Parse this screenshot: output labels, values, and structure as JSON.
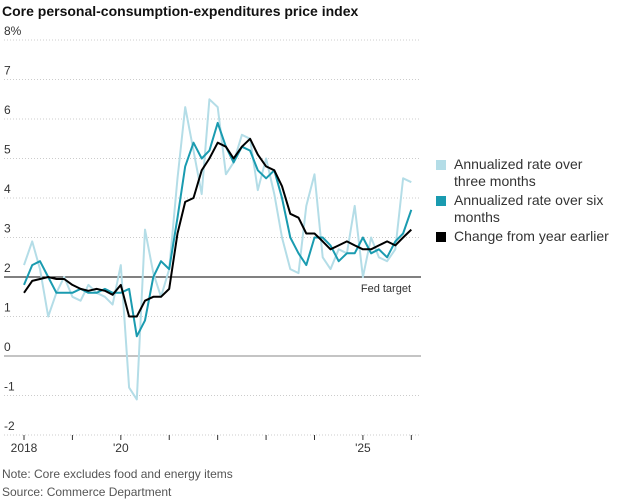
{
  "chart_data": {
    "type": "line",
    "title": "Core personal-consumption-expenditures price index",
    "x": [
      2018.0,
      2018.17,
      2018.33,
      2018.5,
      2018.67,
      2018.83,
      2019.0,
      2019.17,
      2019.33,
      2019.5,
      2019.67,
      2019.83,
      2020.0,
      2020.17,
      2020.33,
      2020.5,
      2020.67,
      2020.83,
      2021.0,
      2021.17,
      2021.33,
      2021.5,
      2021.67,
      2021.83,
      2022.0,
      2022.17,
      2022.33,
      2022.5,
      2022.67,
      2022.83,
      2023.0,
      2023.17,
      2023.33,
      2023.5,
      2023.67,
      2023.83,
      2024.0,
      2024.17,
      2024.33,
      2024.5,
      2024.67,
      2024.83,
      2025.0,
      2025.17,
      2025.33,
      2025.5,
      2025.67,
      2025.83,
      2026.0
    ],
    "series": [
      {
        "name": "Annualized rate over three months",
        "color": "#b4dde7",
        "values": [
          2.3,
          2.9,
          2.2,
          1.0,
          1.6,
          2.0,
          1.5,
          1.4,
          1.8,
          1.6,
          1.5,
          1.3,
          2.3,
          -0.8,
          -1.1,
          3.2,
          2.1,
          1.5,
          2.2,
          4.5,
          6.3,
          5.2,
          4.1,
          6.5,
          6.3,
          4.6,
          4.9,
          5.6,
          5.5,
          4.2,
          5.0,
          4.1,
          3.0,
          2.2,
          2.1,
          3.8,
          4.6,
          2.5,
          2.2,
          2.7,
          2.6,
          3.8,
          2.0,
          3.0,
          2.5,
          2.4,
          2.7,
          4.5,
          4.4
        ]
      },
      {
        "name": "Annualized rate over six months",
        "color": "#1a9bb0",
        "values": [
          1.8,
          2.3,
          2.4,
          2.0,
          1.6,
          1.6,
          1.6,
          1.7,
          1.6,
          1.6,
          1.7,
          1.6,
          1.6,
          1.7,
          0.5,
          0.9,
          2.0,
          2.4,
          2.2,
          3.5,
          4.8,
          5.4,
          5.0,
          5.2,
          5.9,
          5.3,
          4.9,
          5.3,
          5.2,
          4.7,
          4.5,
          4.7,
          4.0,
          3.0,
          2.6,
          2.3,
          3.0,
          3.0,
          2.8,
          2.4,
          2.6,
          2.6,
          3.0,
          2.6,
          2.7,
          2.5,
          2.9,
          3.1,
          3.7
        ]
      },
      {
        "name": "Change from year earlier",
        "color": "#000000",
        "values": [
          1.6,
          1.9,
          1.95,
          2.0,
          1.95,
          1.95,
          1.8,
          1.7,
          1.65,
          1.7,
          1.65,
          1.55,
          1.8,
          1.0,
          1.0,
          1.4,
          1.5,
          1.5,
          1.7,
          3.1,
          3.9,
          4.0,
          4.7,
          5.0,
          5.4,
          5.3,
          5.0,
          5.3,
          5.5,
          5.1,
          4.8,
          4.7,
          4.3,
          3.6,
          3.5,
          3.1,
          3.1,
          2.9,
          2.7,
          2.8,
          2.9,
          2.8,
          2.7,
          2.7,
          2.8,
          2.9,
          2.8,
          3.0,
          3.2
        ]
      }
    ],
    "xlim": [
      2018,
      2026.2
    ],
    "xticks": [
      {
        "value": 2018,
        "label": "2018"
      },
      {
        "value": 2020,
        "label": "'20"
      },
      {
        "value": 2025,
        "label": "'25"
      }
    ],
    "xminor_ticks": [
      2019,
      2021,
      2022,
      2023,
      2024,
      2026
    ],
    "ylim": [
      -2,
      8
    ],
    "yticks": [
      {
        "value": 8,
        "label": "8%"
      },
      7,
      6,
      5,
      4,
      3,
      2,
      1,
      0,
      -1,
      -2
    ],
    "grid": true,
    "reference_line": {
      "value": 2,
      "label": "Fed target"
    },
    "note": "Note: Core excludes food and energy items",
    "source": "Source: Commerce Department"
  }
}
